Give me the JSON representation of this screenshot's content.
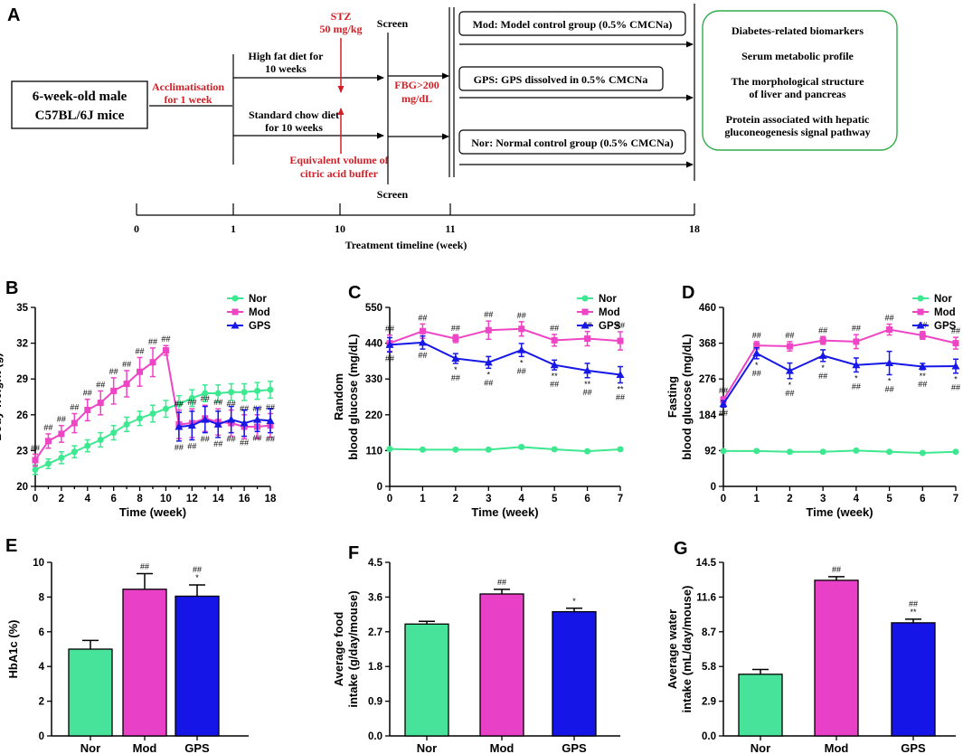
{
  "colors": {
    "nor": "#3ee890",
    "mod": "#ee45c5",
    "gps": "#1717e6",
    "nor_bar": "#48e39a",
    "mod_bar": "#e840c7",
    "gps_bar": "#1515e8",
    "red": "#d31f26",
    "green_border": "#2fae4a"
  },
  "diagram": {
    "letter": "A",
    "mice_line1": "6-week-old male",
    "mice_line2": "C57BL/6J mice",
    "acclim_line1": "Acclimatisation",
    "acclim_line2": "for 1 week",
    "hfd_line1": "High fat diet for",
    "hfd_line2": "10 weeks",
    "chow_line1": "Standard chow diet",
    "chow_line2": "for 10 weeks",
    "stz_line1": "STZ",
    "stz_line2": "50 mg/kg",
    "citric_line1": "Equivalent volume of",
    "citric_line2": "citric acid buffer",
    "screen_top": "Screen",
    "screen_bottom": "Screen",
    "fbg_line1": "FBG>200",
    "fbg_line2": "mg/dL",
    "group_mod": "Mod: Model control group (0.5% CMCNa)",
    "group_gps": "GPS: GPS dissolved in 0.5% CMCNa",
    "group_nor": "Nor: Normal control group (0.5% CMCNa)",
    "outcome1": "Diabetes-related biomarkers",
    "outcome2": "Serum metabolic profile",
    "outcome3a": "The morphological structure",
    "outcome3b": "of liver and pancreas",
    "outcome4a": "Protein associated with hepatic",
    "outcome4b": "gluconeogenesis signal pathway",
    "timeline_ticks": [
      "0",
      "1",
      "10",
      "11",
      "18"
    ],
    "timeline_label": "Treatment timeline (week)"
  },
  "chart_data": [
    {
      "panel": "B",
      "type": "line",
      "title": "",
      "xlabel": "Time (week)",
      "ylabel": "Body weight (g)",
      "xlim": [
        0,
        18
      ],
      "ylim": [
        20,
        35
      ],
      "xticks": [
        "0",
        "2",
        "4",
        "6",
        "8",
        "10",
        "12",
        "14",
        "16",
        "18"
      ],
      "yticks": [
        "20",
        "23",
        "26",
        "29",
        "32",
        "35"
      ],
      "legend": [
        "Nor",
        "Mod",
        "GPS"
      ],
      "legend_position": "top-right",
      "series": [
        {
          "name": "Nor",
          "x": [
            0,
            1,
            2,
            3,
            4,
            5,
            6,
            7,
            8,
            9,
            10,
            11,
            12,
            13,
            14,
            15,
            16,
            17,
            18
          ],
          "y": [
            21.4,
            21.9,
            22.4,
            22.9,
            23.4,
            23.9,
            24.5,
            25.2,
            25.7,
            26.1,
            26.5,
            26.9,
            27.4,
            27.8,
            27.8,
            27.9,
            27.9,
            28.0,
            28.1
          ],
          "err": [
            0.4,
            0.4,
            0.5,
            0.5,
            0.5,
            0.6,
            0.6,
            0.6,
            0.6,
            0.7,
            0.7,
            0.7,
            0.7,
            0.7,
            0.7,
            0.7,
            0.7,
            0.7,
            0.7
          ]
        },
        {
          "name": "Mod",
          "x": [
            0,
            1,
            2,
            3,
            4,
            5,
            6,
            7,
            8,
            9,
            10,
            11,
            12,
            13,
            14,
            15,
            16,
            17,
            18
          ],
          "y": [
            22.2,
            23.8,
            24.4,
            25.3,
            26.4,
            27.0,
            28.0,
            28.6,
            29.6,
            30.4,
            31.4,
            25.2,
            25.3,
            25.7,
            25.4,
            25.3,
            25.0,
            25.0,
            25.1
          ],
          "err": [
            0.5,
            0.6,
            0.7,
            0.8,
            0.9,
            1.0,
            1.1,
            1.1,
            1.2,
            1.2,
            0.4,
            1.2,
            1.2,
            1.1,
            1.1,
            1.1,
            1.0,
            1.0,
            1.0
          ],
          "annotations": [
            "##",
            "##",
            "##",
            "##",
            "##",
            "##",
            "##",
            "##",
            "##",
            "##",
            "##",
            "##",
            "##",
            "##",
            "##",
            "##",
            "##",
            "##",
            "##"
          ]
        },
        {
          "name": "GPS",
          "x": [
            11,
            12,
            13,
            14,
            15,
            16,
            17,
            18
          ],
          "y": [
            25.0,
            25.1,
            25.6,
            25.2,
            25.6,
            25.3,
            25.6,
            25.5
          ],
          "err": [
            1.2,
            1.2,
            1.1,
            1.1,
            1.1,
            1.1,
            1.0,
            1.0
          ],
          "annotations": [
            "##",
            "##",
            "##",
            "##",
            "##",
            "##",
            "##",
            "##"
          ]
        }
      ]
    },
    {
      "panel": "C",
      "type": "line",
      "title": "",
      "xlabel": "Time (week)",
      "ylabel_line1": "Random",
      "ylabel_line2": "blood glucose (mg/dL)",
      "xlim": [
        0,
        7
      ],
      "ylim": [
        0,
        550
      ],
      "xticks": [
        "0",
        "1",
        "2",
        "3",
        "4",
        "5",
        "6",
        "7"
      ],
      "yticks": [
        "0",
        "110",
        "220",
        "330",
        "440",
        "550"
      ],
      "legend": [
        "Nor",
        "Mod",
        "GPS"
      ],
      "legend_position": "top-right",
      "series": [
        {
          "name": "Nor",
          "x": [
            0,
            1,
            2,
            3,
            4,
            5,
            6,
            7
          ],
          "y": [
            115,
            113,
            113,
            113,
            121,
            114,
            108,
            114
          ],
          "err": [
            4,
            4,
            4,
            4,
            5,
            4,
            4,
            4
          ]
        },
        {
          "name": "Mod",
          "x": [
            0,
            1,
            2,
            3,
            4,
            5,
            6,
            7
          ],
          "y": [
            440,
            477,
            454,
            480,
            484,
            449,
            454,
            447
          ],
          "err": [
            25,
            22,
            12,
            28,
            22,
            18,
            22,
            28
          ],
          "annotations": [
            "##",
            "##",
            "##",
            "##",
            "##",
            "##",
            "##",
            "##"
          ]
        },
        {
          "name": "GPS",
          "x": [
            0,
            1,
            2,
            3,
            4,
            5,
            6,
            7
          ],
          "y": [
            435,
            442,
            393,
            381,
            419,
            373,
            356,
            343
          ],
          "err": [
            22,
            20,
            15,
            18,
            20,
            15,
            22,
            25
          ],
          "annotations": [
            "##",
            "##",
            "*\n##",
            "*\n##",
            "*\n##",
            "**\n##",
            "**\n##",
            "**\n##"
          ]
        }
      ]
    },
    {
      "panel": "D",
      "type": "line",
      "title": "",
      "xlabel": "Time (week)",
      "ylabel_line1": "Fasting",
      "ylabel_line2": "blood glucose (mg/dL)",
      "xlim": [
        0,
        7
      ],
      "ylim": [
        0,
        460
      ],
      "xticks": [
        "0",
        "1",
        "2",
        "3",
        "4",
        "5",
        "6",
        "7"
      ],
      "yticks": [
        "0",
        "92",
        "184",
        "276",
        "368",
        "460"
      ],
      "legend": [
        "Nor",
        "Mod",
        "GPS"
      ],
      "legend_position": "top-right",
      "series": [
        {
          "name": "Nor",
          "x": [
            0,
            1,
            2,
            3,
            4,
            5,
            6,
            7
          ],
          "y": [
            91,
            91,
            89,
            89,
            92,
            89,
            86,
            89
          ],
          "err": [
            3,
            3,
            3,
            3,
            3,
            3,
            3,
            3
          ]
        },
        {
          "name": "Mod",
          "x": [
            0,
            1,
            2,
            3,
            4,
            5,
            6,
            7
          ],
          "y": [
            222,
            362,
            360,
            375,
            372,
            403,
            388,
            368
          ],
          "err": [
            8,
            10,
            12,
            10,
            18,
            14,
            10,
            15
          ],
          "annotations": [
            "##",
            "##",
            "##",
            "##",
            "##",
            "##",
            "##",
            "##"
          ]
        },
        {
          "name": "GPS",
          "x": [
            0,
            1,
            2,
            3,
            4,
            5,
            6,
            7
          ],
          "y": [
            212,
            342,
            297,
            336,
            312,
            317,
            308,
            309
          ],
          "err": [
            8,
            14,
            20,
            15,
            18,
            30,
            8,
            18
          ],
          "annotations": [
            "##",
            "*\n##",
            "*\n##",
            "*\n##",
            "*\n##",
            "*\n##",
            "**\n##",
            "*\n##"
          ]
        }
      ]
    },
    {
      "panel": "E",
      "type": "bar",
      "title": "",
      "xlabel": "",
      "ylabel": "HbA1c (%)",
      "categories": [
        "Nor",
        "Mod",
        "GPS"
      ],
      "values": [
        5.0,
        8.45,
        8.05
      ],
      "err": [
        0.5,
        0.9,
        0.65
      ],
      "annotations": [
        "",
        "##",
        "##\n*"
      ],
      "ylim": [
        0,
        10
      ],
      "yticks": [
        "0",
        "2",
        "4",
        "6",
        "8",
        "10"
      ]
    },
    {
      "panel": "F",
      "type": "bar",
      "title": "",
      "xlabel": "",
      "ylabel_line1": "Average food",
      "ylabel_line2": "intake (g/day/mouse)",
      "categories": [
        "Nor",
        "Mod",
        "GPS"
      ],
      "values": [
        2.9,
        3.68,
        3.22
      ],
      "err": [
        0.07,
        0.12,
        0.09
      ],
      "annotations": [
        "",
        "##",
        "*"
      ],
      "ylim": [
        0,
        4.5
      ],
      "yticks": [
        "0.0",
        "0.9",
        "1.8",
        "2.7",
        "3.6",
        "4.5"
      ]
    },
    {
      "panel": "G",
      "type": "bar",
      "title": "",
      "xlabel": "",
      "ylabel_line1": "Average water",
      "ylabel_line2": "intake (mL/day/mouse)",
      "categories": [
        "Nor",
        "Mod",
        "GPS"
      ],
      "values": [
        5.15,
        13.0,
        9.45
      ],
      "err": [
        0.4,
        0.3,
        0.3
      ],
      "annotations": [
        "",
        "##",
        "##\n**"
      ],
      "ylim": [
        0,
        14.5
      ],
      "yticks": [
        "0.0",
        "2.9",
        "5.8",
        "8.7",
        "11.6",
        "14.5"
      ]
    }
  ]
}
